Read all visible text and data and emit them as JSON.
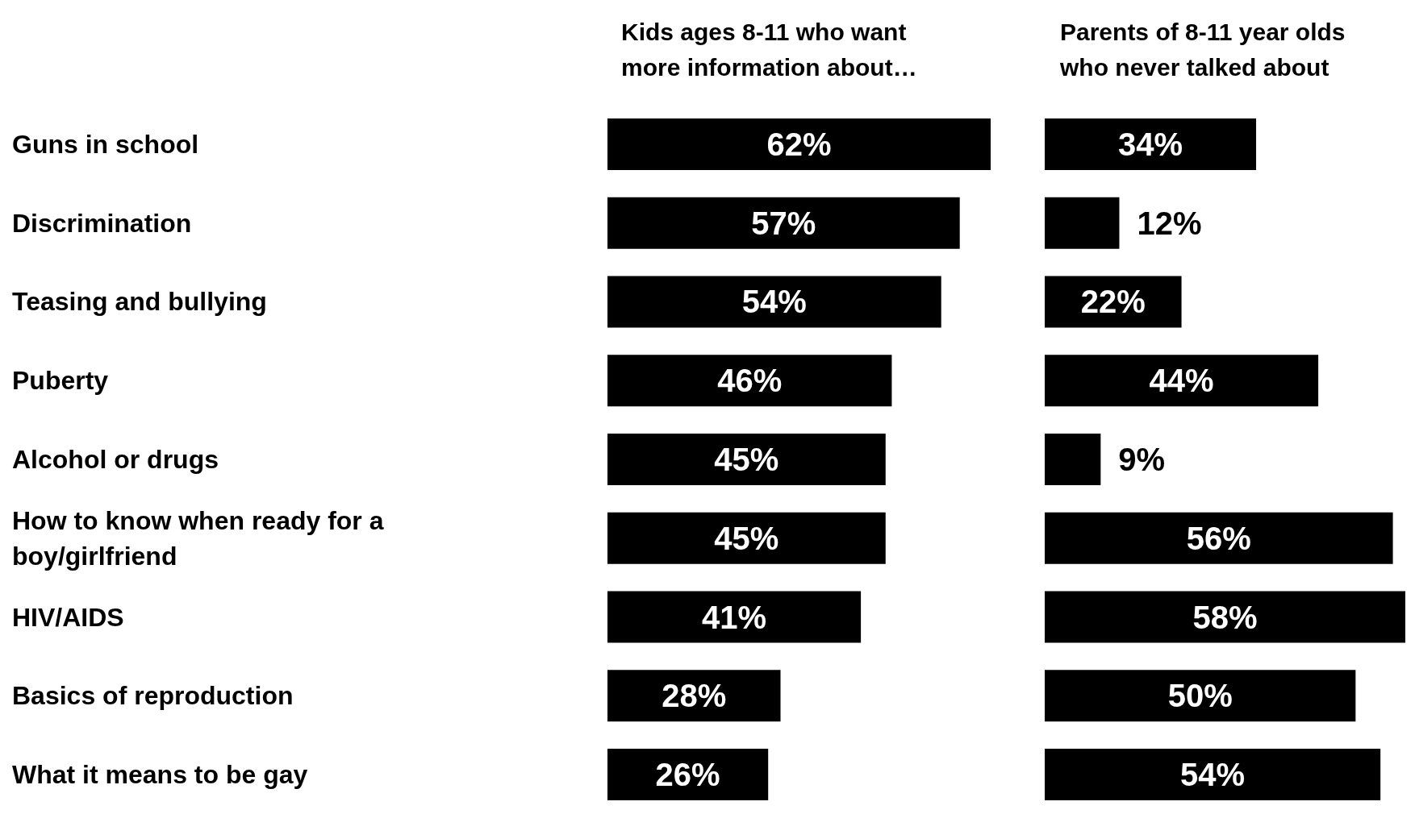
{
  "chart_data": [
    {
      "type": "bar",
      "orientation": "horizontal",
      "title": "Kids ages 8-11 who want more information about…",
      "categories": [
        "Guns in school",
        "Discrimination",
        "Teasing and bullying",
        "Puberty",
        "Alcohol or drugs",
        "How to know when ready for a boy/girlfriend",
        "HIV/AIDS",
        "Basics of reproduction",
        "What it means to be gay"
      ],
      "values": [
        62,
        57,
        54,
        46,
        45,
        45,
        41,
        28,
        26
      ],
      "color": "#000000",
      "value_labels": [
        "62%",
        "57%",
        "54%",
        "46%",
        "45%",
        "45%",
        "41%",
        "28%",
        "26%"
      ],
      "xlim": [
        0,
        62
      ],
      "tick_labels": "y"
    },
    {
      "type": "bar",
      "orientation": "horizontal",
      "title": "Parents of 8-11 year olds who never talked about",
      "categories": [
        "Guns in school",
        "Discrimination",
        "Teasing and bullying",
        "Puberty",
        "Alcohol or drugs",
        "How to know when ready for a boy/girlfriend",
        "HIV/AIDS",
        "Basics of reproduction",
        "What it means to be gay"
      ],
      "values": [
        34,
        12,
        22,
        44,
        9,
        56,
        58,
        50,
        54
      ],
      "color": "#000000",
      "value_labels": [
        "34%",
        "12%",
        "22%",
        "44%",
        "9%",
        "56%",
        "58%",
        "50%",
        "54%"
      ],
      "xlim": [
        0,
        58
      ],
      "tick_labels": false
    }
  ]
}
